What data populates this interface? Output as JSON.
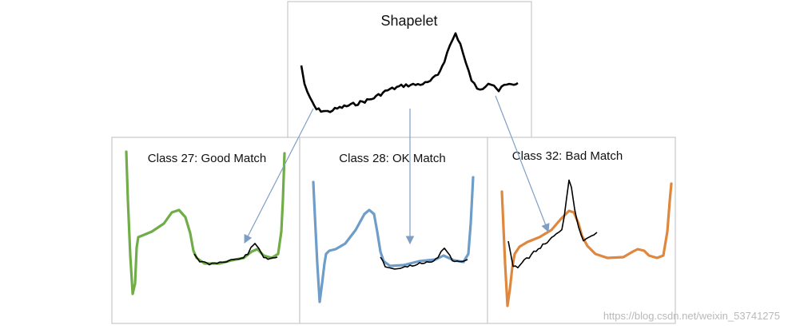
{
  "shapelet_panel": {
    "title": "Shapelet"
  },
  "panels": [
    {
      "title": "Class 27: Good Match",
      "color": "#70ad47"
    },
    {
      "title": "Class 28: OK Match",
      "color": "#6d9dc8"
    },
    {
      "title": "Class 32: Bad Match",
      "color": "#e0873e"
    }
  ],
  "watermark": "https://blog.csdn.net/weixin_53741275"
}
